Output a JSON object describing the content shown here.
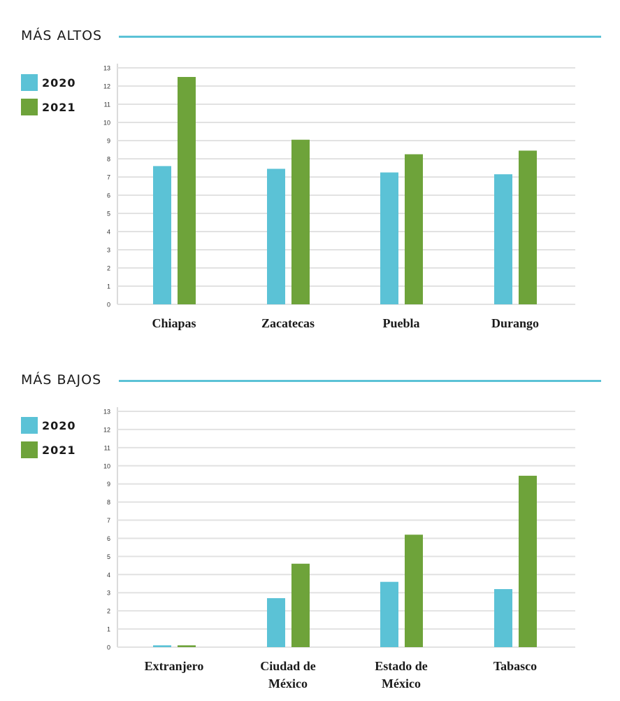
{
  "colors": {
    "s2020": "#5BC2D6",
    "s2021": "#6EA33A",
    "accent": "#5BC2D6"
  },
  "chart_data": [
    {
      "type": "bar",
      "title": "MÁS ALTOS",
      "categories": [
        "Chiapas",
        "Zacatecas",
        "Puebla",
        "Durango"
      ],
      "series": [
        {
          "name": "2020",
          "values": [
            7.6,
            7.45,
            7.25,
            7.15
          ]
        },
        {
          "name": "2021",
          "values": [
            12.5,
            9.05,
            8.25,
            8.45
          ]
        }
      ],
      "ylim": [
        0,
        13
      ],
      "yticks": [
        0,
        1,
        2,
        3,
        4,
        5,
        6,
        7,
        8,
        9,
        10,
        11,
        12,
        13
      ],
      "grid": true,
      "legend": "left"
    },
    {
      "type": "bar",
      "title": "MÁS BAJOS",
      "categories": [
        "Extranjero",
        "Ciudad de México",
        "Estado de México",
        "Tabasco"
      ],
      "series": [
        {
          "name": "2020",
          "values": [
            0.1,
            2.7,
            3.6,
            3.2
          ]
        },
        {
          "name": "2021",
          "values": [
            0.1,
            4.6,
            6.2,
            9.45
          ]
        }
      ],
      "ylim": [
        0,
        13
      ],
      "yticks": [
        0,
        1,
        2,
        3,
        4,
        5,
        6,
        7,
        8,
        9,
        10,
        11,
        12,
        13
      ],
      "grid": true,
      "legend": "left"
    }
  ]
}
